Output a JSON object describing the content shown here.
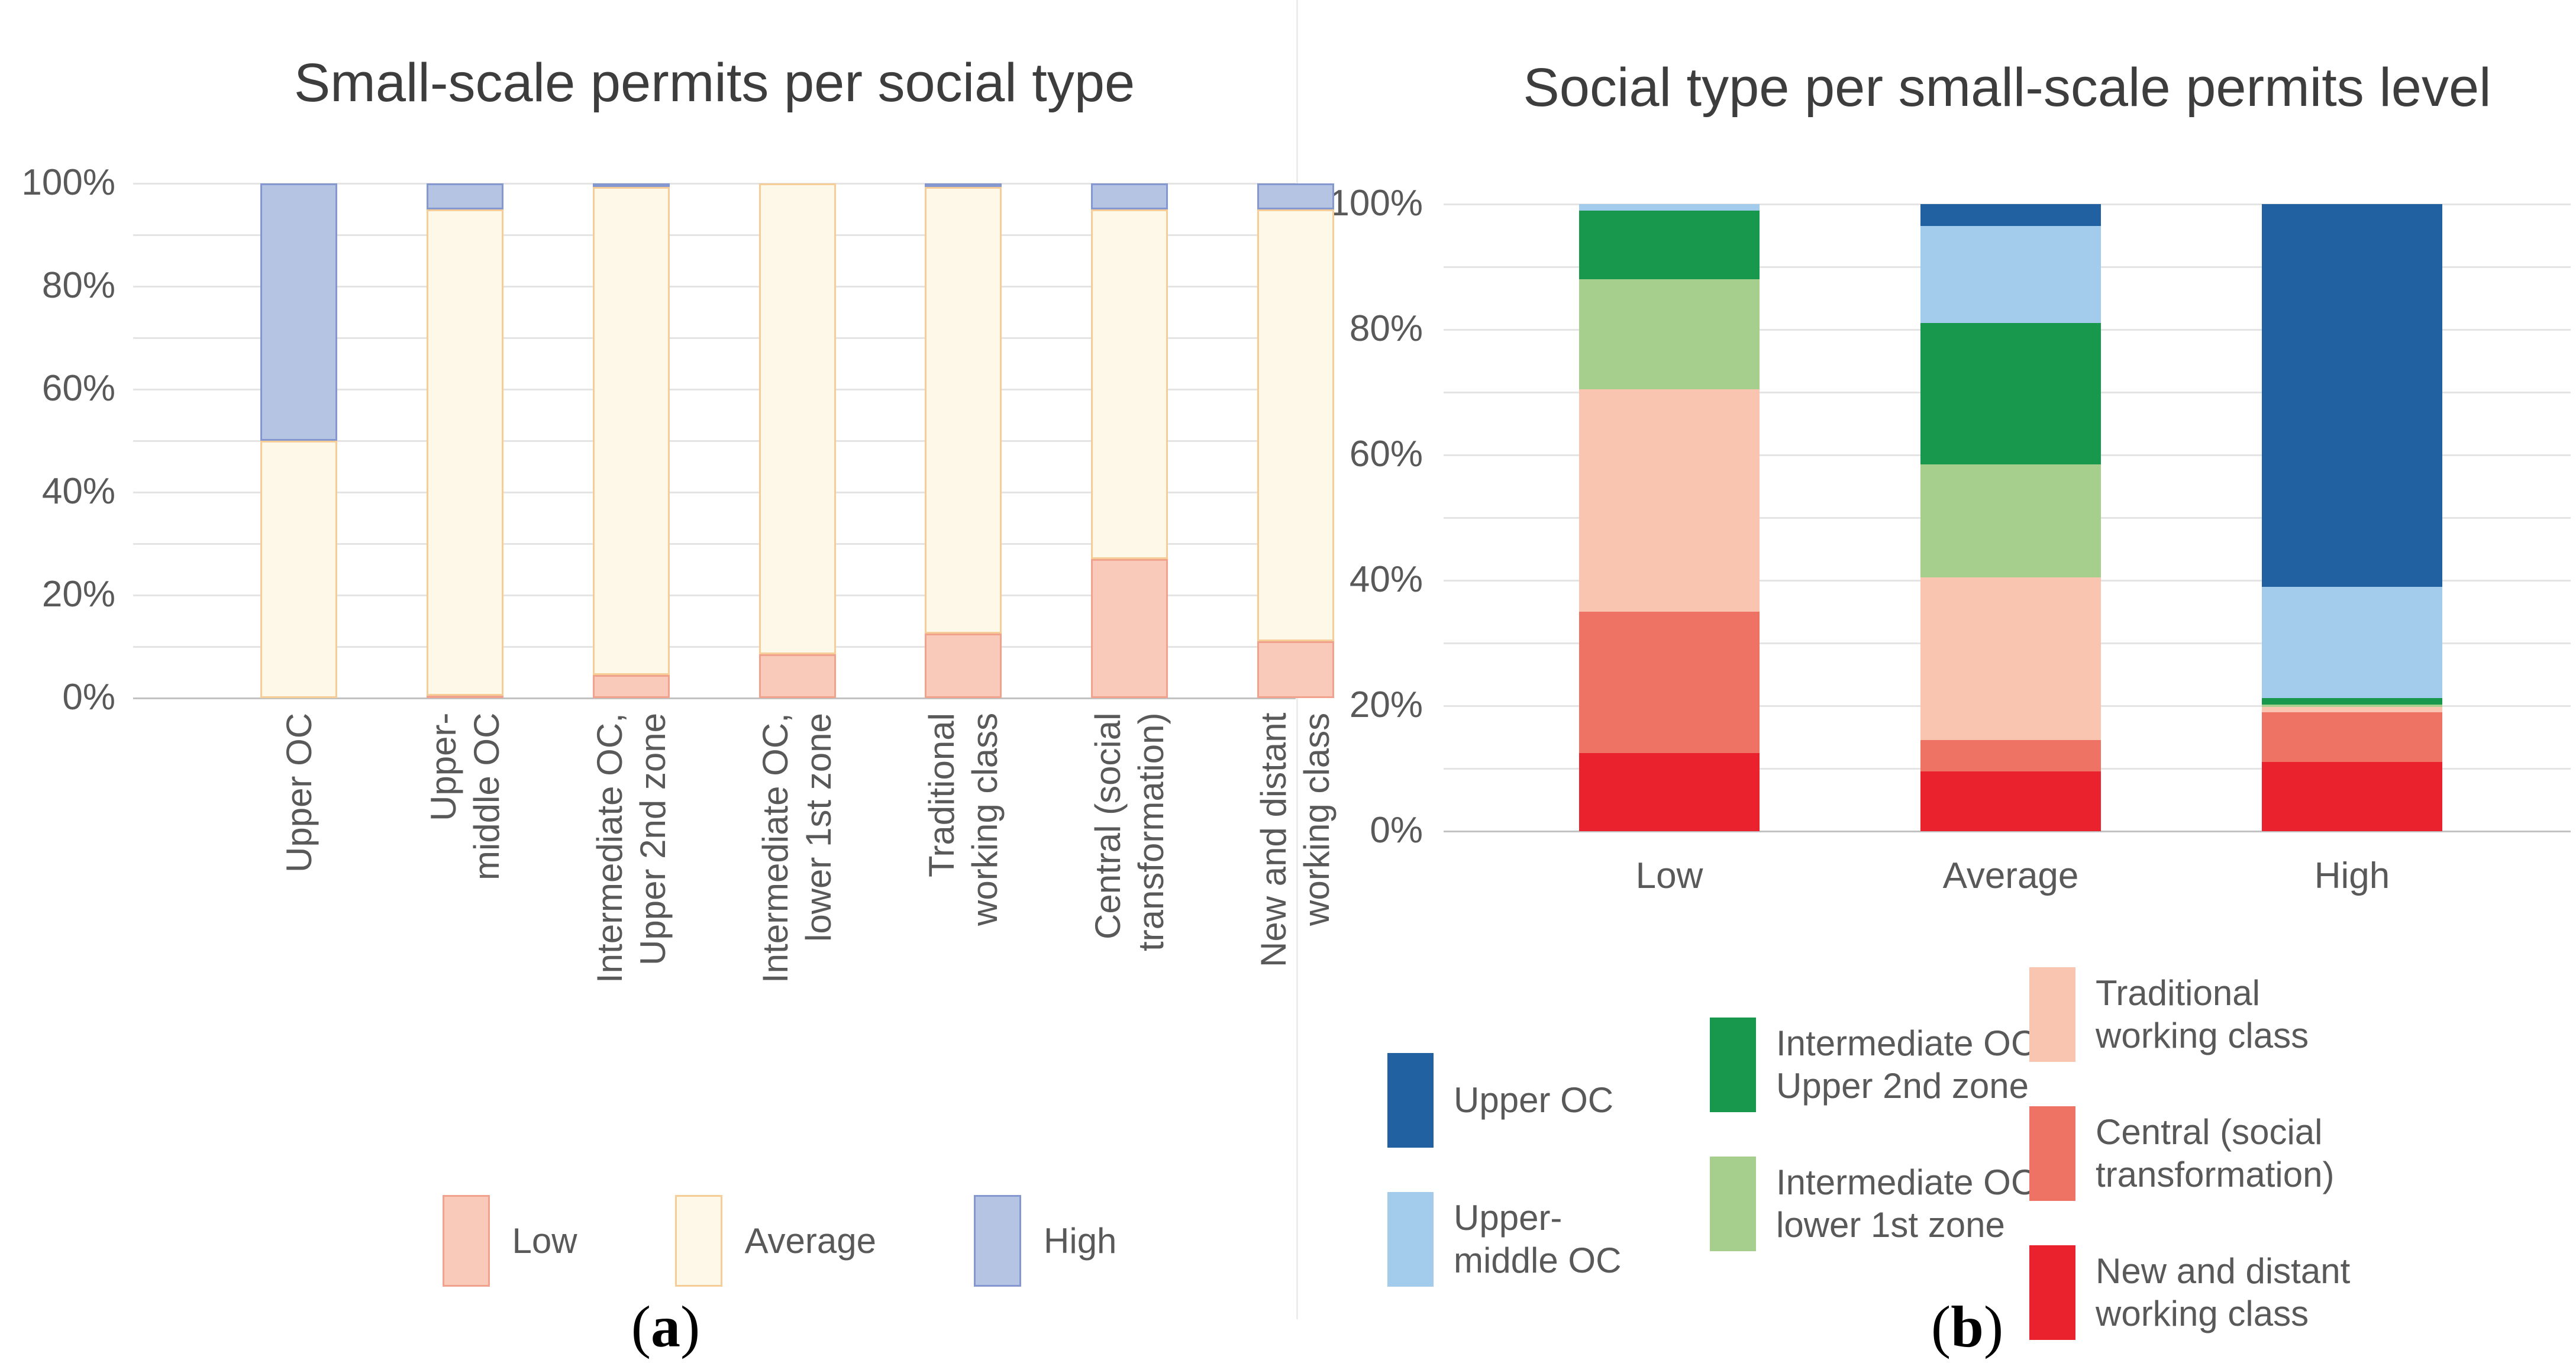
{
  "figure": {
    "background": "#ffffff",
    "divider_color": "#ececec",
    "grid_color": "#e4e4e4",
    "baseline_color": "#c2c2c2",
    "tick_text_color": "#595959",
    "title_text_color": "#3d3d3d"
  },
  "captions": {
    "a": {
      "pre": "(",
      "letter": "a",
      "post": ")"
    },
    "b": {
      "pre": "(",
      "letter": "b",
      "post": ")"
    }
  },
  "chart_data": [
    {
      "type": "bar",
      "variant": "stacked-100-percent",
      "title": "Small-scale permits per social type",
      "xlabel": "",
      "ylabel": "",
      "ylim": [
        0,
        100
      ],
      "grid": true,
      "y_ticks": [
        "0%",
        "20%",
        "40%",
        "60%",
        "80%",
        "100%"
      ],
      "categories": [
        "Upper OC",
        "Upper-middle OC",
        "Intermediate OC, Upper 2nd zone",
        "Intermediate OC, lower 1st zone",
        "Traditional working class",
        "Central (social transformation)",
        "New and distant working class"
      ],
      "tick_labels": [
        "Upper OC",
        "Upper-\nmiddle OC",
        "Intermediate OC,\nUpper 2nd zone",
        "Intermediate OC,\nlower 1st zone",
        "Traditional\nworking class",
        "Central (social\ntransformation)",
        "New and distant\nworking class"
      ],
      "legend_position": "bottom",
      "series": [
        {
          "name": "Low",
          "fill": "#f9c9b9",
          "border": "#f0a28c",
          "values": [
            0,
            0.5,
            4.5,
            8.5,
            12.5,
            27,
            11
          ]
        },
        {
          "name": "Average",
          "fill": "#fef8e8",
          "border": "#f6cd96",
          "values": [
            50,
            94.5,
            94.8,
            91.5,
            86.8,
            68,
            84
          ]
        },
        {
          "name": "High",
          "fill": "#b5c4e3",
          "border": "#8498cf",
          "values": [
            50,
            5.0,
            0.7,
            0,
            0.7,
            5,
            5
          ]
        }
      ]
    },
    {
      "type": "bar",
      "variant": "stacked-100-percent",
      "title": "Social type per small-scale permits level",
      "xlabel": "",
      "ylabel": "",
      "ylim": [
        0,
        100
      ],
      "grid": true,
      "y_ticks": [
        "0%",
        "20%",
        "40%",
        "60%",
        "80%",
        "100%"
      ],
      "categories": [
        "Low",
        "Average",
        "High"
      ],
      "tick_labels": [
        "Low",
        "Average",
        "High"
      ],
      "legend_position": "bottom",
      "series": [
        {
          "name": "New and distant working class",
          "color": "#e9222e",
          "values": [
            12.5,
            9.5,
            11
          ]
        },
        {
          "name": "Central (social transformation)",
          "color": "#ef7365",
          "values": [
            22.5,
            5.0,
            8
          ]
        },
        {
          "name": "Traditional working class",
          "color": "#fac5b0",
          "values": [
            35.5,
            26.0,
            0.8
          ]
        },
        {
          "name": "Intermediate OC, lower 1st zone",
          "color": "#a6cf8d",
          "values": [
            17.5,
            18.0,
            0.4
          ]
        },
        {
          "name": "Intermediate OC, Upper 2nd zone",
          "color": "#17984c",
          "values": [
            11.0,
            22.5,
            1.0
          ]
        },
        {
          "name": "Upper-middle OC",
          "color": "#a3ccec",
          "values": [
            1.0,
            15.5,
            17.8
          ]
        },
        {
          "name": "Upper OC",
          "color": "#2261a1",
          "values": [
            0,
            3.5,
            61.0
          ]
        }
      ],
      "legend_columns": [
        [
          {
            "series": "Upper OC",
            "label": "Upper OC"
          },
          {
            "series": "Upper-middle OC",
            "label": "Upper-\nmiddle OC"
          }
        ],
        [
          {
            "series": "Intermediate OC, Upper 2nd zone",
            "label": "Intermediate OC,\nUpper 2nd zone"
          },
          {
            "series": "Intermediate OC, lower 1st zone",
            "label": "Intermediate OC,\nlower 1st zone"
          }
        ],
        [
          {
            "series": "Traditional working class",
            "label": "Traditional\nworking class"
          },
          {
            "series": "Central (social transformation)",
            "label": "Central (social\ntransformation)"
          },
          {
            "series": "New and distant working class",
            "label": "New and distant\nworking class"
          }
        ]
      ]
    }
  ]
}
